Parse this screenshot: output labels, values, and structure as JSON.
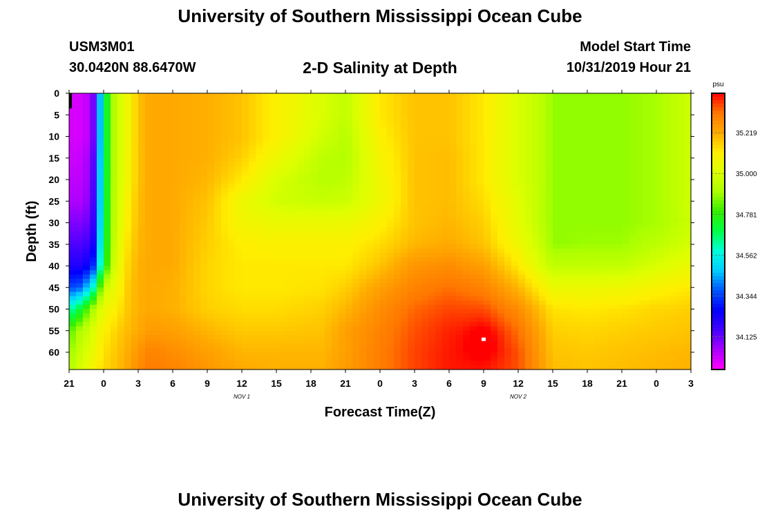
{
  "header": {
    "title": "University of Southern Mississippi Ocean Cube",
    "station_id": "USM3M01",
    "coordinates": "30.0420N 88.6470W",
    "subtitle": "2-D Salinity at Depth",
    "model_start_label": "Model Start Time",
    "model_start_value": "10/31/2019 Hour 21"
  },
  "footer": {
    "title": "University of Southern Mississippi Ocean Cube"
  },
  "colors": {
    "background": "#ffffff",
    "axis": "#000000",
    "colormap": [
      "#ff00ff",
      "#aa00ff",
      "#4400ff",
      "#0000ff",
      "#0055ff",
      "#00ccff",
      "#00ffdd",
      "#00ff44",
      "#33ee00",
      "#aaff00",
      "#ddff00",
      "#ffee00",
      "#ffaa00",
      "#ff7700",
      "#ff0000"
    ]
  },
  "chart_data": {
    "type": "heatmap",
    "title": "2-D Salinity at Depth",
    "xlabel": "Forecast Time(Z)",
    "ylabel": "Depth (ft)",
    "x_range_hours": [
      0,
      54
    ],
    "y_range_ft": [
      0,
      64
    ],
    "x_tick_labels": [
      "21",
      "0",
      "3",
      "6",
      "9",
      "12",
      "15",
      "18",
      "21",
      "0",
      "3",
      "6",
      "9",
      "12",
      "15",
      "18",
      "21",
      "0",
      "3"
    ],
    "y_tick_labels": [
      "0",
      "5",
      "10",
      "15",
      "20",
      "25",
      "30",
      "35",
      "40",
      "45",
      "50",
      "55",
      "60"
    ],
    "date_markers": [
      {
        "label": "NOV 1",
        "hour": 15
      },
      {
        "label": "NOV 2",
        "hour": 39
      }
    ],
    "colorbar": {
      "unit": "psu",
      "range": [
        33.95,
        35.43
      ],
      "labels": [
        "35.219",
        "35.000",
        "34.781",
        "34.562",
        "34.344",
        "34.125"
      ]
    },
    "salinity_field_psu": {
      "forecast_hours": [
        0,
        1,
        2,
        3,
        4,
        5,
        6,
        7,
        9,
        12,
        15,
        18,
        22,
        24,
        27,
        30,
        33,
        36,
        39,
        41,
        42,
        45,
        48,
        51,
        54
      ],
      "depths_ft": [
        0,
        5,
        10,
        15,
        20,
        25,
        30,
        35,
        40,
        45,
        50,
        55,
        60,
        64
      ],
      "values": [
        [
          34.0,
          34.0,
          34.05,
          34.65,
          34.95,
          35.05,
          35.18,
          35.22,
          35.22,
          35.21,
          35.18,
          35.1,
          35.0,
          34.95,
          35.12,
          35.18,
          35.18,
          35.12,
          35.0,
          34.94,
          34.88,
          34.88,
          34.88,
          34.9,
          34.98
        ],
        [
          34.0,
          34.0,
          34.05,
          34.65,
          34.95,
          35.05,
          35.18,
          35.22,
          35.22,
          35.21,
          35.18,
          35.1,
          35.0,
          34.95,
          35.12,
          35.18,
          35.18,
          35.12,
          35.0,
          34.94,
          34.88,
          34.88,
          34.88,
          34.9,
          34.98
        ],
        [
          34.0,
          34.0,
          34.05,
          34.65,
          34.95,
          35.05,
          35.18,
          35.22,
          35.22,
          35.21,
          35.18,
          35.1,
          34.98,
          34.93,
          35.1,
          35.18,
          35.18,
          35.12,
          35.0,
          34.94,
          34.88,
          34.88,
          34.88,
          34.9,
          34.98
        ],
        [
          34.01,
          34.02,
          34.08,
          34.65,
          34.95,
          35.06,
          35.18,
          35.22,
          35.22,
          35.21,
          35.16,
          35.06,
          34.94,
          34.92,
          35.08,
          35.18,
          35.19,
          35.12,
          35.0,
          34.94,
          34.88,
          34.88,
          34.88,
          34.9,
          34.98
        ],
        [
          34.03,
          34.03,
          34.09,
          34.66,
          34.95,
          35.06,
          35.18,
          35.22,
          35.22,
          35.2,
          35.12,
          35.0,
          34.93,
          34.94,
          35.06,
          35.18,
          35.19,
          35.12,
          35.0,
          34.94,
          34.88,
          34.88,
          34.88,
          34.9,
          34.98
        ],
        [
          34.05,
          34.05,
          34.1,
          34.66,
          34.96,
          35.08,
          35.19,
          35.22,
          35.22,
          35.18,
          35.06,
          34.98,
          34.96,
          34.97,
          35.06,
          35.18,
          35.19,
          35.14,
          35.02,
          34.94,
          34.88,
          34.88,
          34.88,
          34.9,
          34.98
        ],
        [
          34.1,
          34.1,
          34.13,
          34.67,
          34.96,
          35.1,
          35.19,
          35.22,
          35.22,
          35.17,
          35.07,
          35.05,
          35.05,
          35.05,
          35.1,
          35.18,
          35.2,
          35.16,
          35.03,
          34.94,
          34.88,
          34.88,
          34.88,
          34.9,
          34.97
        ],
        [
          34.15,
          34.15,
          34.18,
          34.68,
          34.98,
          35.12,
          35.2,
          35.22,
          35.22,
          35.16,
          35.11,
          35.1,
          35.1,
          35.1,
          35.14,
          35.2,
          35.22,
          35.18,
          35.06,
          34.96,
          34.88,
          34.89,
          34.89,
          34.94,
          34.99
        ],
        [
          34.22,
          34.22,
          34.28,
          34.72,
          35.0,
          35.14,
          35.21,
          35.22,
          35.22,
          35.15,
          35.12,
          35.12,
          35.12,
          35.12,
          35.18,
          35.26,
          35.28,
          35.24,
          35.12,
          35.0,
          34.95,
          34.95,
          34.95,
          35.0,
          35.05
        ],
        [
          34.35,
          34.38,
          34.55,
          34.95,
          35.05,
          35.16,
          35.21,
          35.22,
          35.21,
          35.15,
          35.12,
          35.12,
          35.13,
          35.16,
          35.24,
          35.3,
          35.33,
          35.3,
          35.2,
          35.1,
          35.05,
          35.05,
          35.06,
          35.09,
          35.12
        ],
        [
          34.6,
          34.72,
          34.9,
          35.05,
          35.1,
          35.17,
          35.21,
          35.22,
          35.21,
          35.16,
          35.14,
          35.14,
          35.16,
          35.2,
          35.28,
          35.34,
          35.37,
          35.36,
          35.28,
          35.18,
          35.13,
          35.12,
          35.13,
          35.15,
          35.16
        ],
        [
          34.82,
          34.92,
          35.0,
          35.1,
          35.15,
          35.19,
          35.22,
          35.25,
          35.24,
          35.2,
          35.17,
          35.17,
          35.18,
          35.24,
          35.3,
          35.36,
          35.4,
          35.4,
          35.33,
          35.22,
          35.16,
          35.15,
          35.16,
          35.17,
          35.18
        ],
        [
          34.88,
          34.97,
          35.04,
          35.13,
          35.17,
          35.21,
          35.26,
          35.3,
          35.28,
          35.24,
          35.2,
          35.2,
          35.2,
          35.24,
          35.31,
          35.37,
          35.41,
          35.42,
          35.36,
          35.24,
          35.18,
          35.17,
          35.18,
          35.19,
          35.2
        ],
        [
          34.92,
          35.0,
          35.08,
          35.15,
          35.18,
          35.22,
          35.28,
          35.32,
          35.3,
          35.26,
          35.22,
          35.21,
          35.21,
          35.25,
          35.31,
          35.37,
          35.41,
          35.41,
          35.36,
          35.25,
          35.19,
          35.18,
          35.19,
          35.2,
          35.21
        ]
      ],
      "peak_marker": {
        "hour": 36,
        "depth_ft": 57,
        "value_psu": 35.43
      }
    }
  }
}
